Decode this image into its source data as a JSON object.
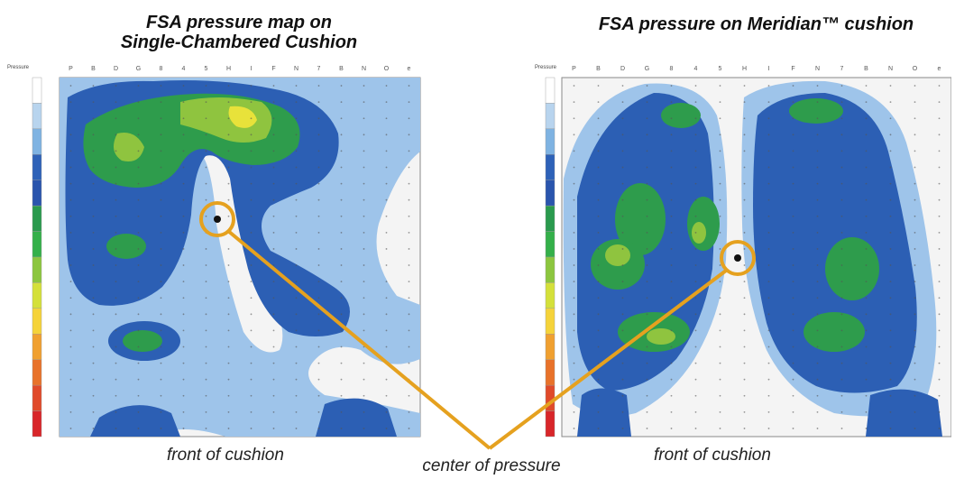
{
  "left_panel": {
    "title_line1": "FSA pressure map on",
    "title_line2": "Single-Chambered Cushion",
    "caption": "front of cushion",
    "scale_header": "Pressure"
  },
  "right_panel": {
    "title": "FSA pressure on Meridian™ cushion",
    "caption": "front of cushion",
    "scale_header": "Pressure"
  },
  "callout_label": "center of pressure",
  "column_letters": [
    "P",
    "B",
    "D",
    "G",
    "8",
    "4",
    "5",
    "H",
    "I",
    "F",
    "N",
    "7",
    "B",
    "N",
    "O",
    "e"
  ],
  "colors": {
    "callout": "#e5a11f",
    "pressure_scale": [
      "#ffffff",
      "#b8d4ee",
      "#7fb3e2",
      "#2e62b8",
      "#2a55ad",
      "#2a9a4e",
      "#34b04a",
      "#8cc63f",
      "#d4e03a",
      "#f5d33a",
      "#f0a030",
      "#e8722a",
      "#e04a2a",
      "#d8262a"
    ],
    "white": "#f4f4f4",
    "light_blue": "#9ec4ea",
    "blue": "#2c5fb4",
    "green": "#2e9c4c",
    "light_green": "#8fc43f",
    "yellow": "#e8e23a"
  }
}
